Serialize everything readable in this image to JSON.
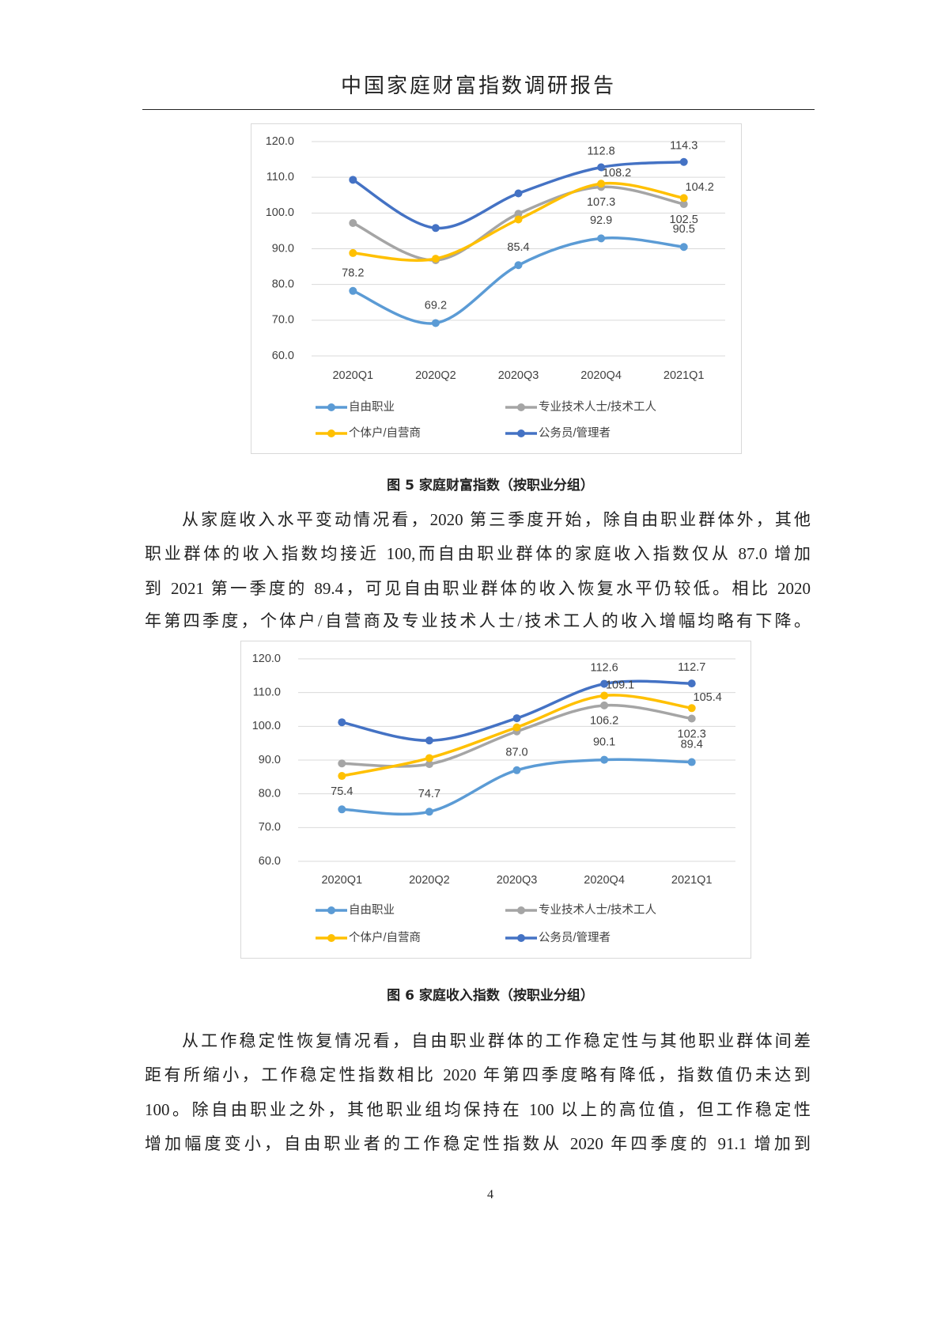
{
  "header": {
    "title": "中国家庭财富指数调研报告"
  },
  "chart_data": [
    {
      "type": "line",
      "categories": [
        "2020Q1",
        "2020Q2",
        "2020Q3",
        "2020Q4",
        "2021Q1"
      ],
      "ylim": [
        60,
        120
      ],
      "yticks": [
        {
          "value": 60,
          "label": "60.0"
        },
        {
          "value": 70,
          "label": "70.0"
        },
        {
          "value": 80,
          "label": "80.0"
        },
        {
          "value": 90,
          "label": "90.0"
        },
        {
          "value": 100,
          "label": "100.0"
        },
        {
          "value": 110,
          "label": "110.0"
        },
        {
          "value": 120,
          "label": "120.0"
        }
      ],
      "grid": true,
      "series": [
        {
          "name": "自由职业",
          "color": "#5b9bd5",
          "values": [
            78.2,
            69.2,
            85.4,
            92.9,
            90.5
          ],
          "value_labels": [
            "78.2",
            "69.2",
            "85.4",
            "92.9",
            "90.5"
          ]
        },
        {
          "name": "专业技术人士/技术工人",
          "color": "#a5a5a5",
          "values": [
            97.2,
            86.8,
            99.8,
            107.3,
            102.5
          ],
          "value_labels": [
            null,
            null,
            null,
            "107.3",
            "102.5"
          ]
        },
        {
          "name": "个体户/自营商",
          "color": "#ffc000",
          "values": [
            88.8,
            87.2,
            98.2,
            108.2,
            104.2
          ],
          "value_labels": [
            null,
            null,
            null,
            "108.2",
            "104.2"
          ]
        },
        {
          "name": "公务员/管理者",
          "color": "#4472c4",
          "values": [
            109.3,
            95.8,
            105.5,
            112.8,
            114.3
          ],
          "value_labels": [
            null,
            null,
            null,
            "112.8",
            "114.3"
          ]
        }
      ]
    },
    {
      "type": "line",
      "categories": [
        "2020Q1",
        "2020Q2",
        "2020Q3",
        "2020Q4",
        "2021Q1"
      ],
      "ylim": [
        60,
        120
      ],
      "yticks": [
        {
          "value": 60,
          "label": "60.0"
        },
        {
          "value": 70,
          "label": "70.0"
        },
        {
          "value": 80,
          "label": "80.0"
        },
        {
          "value": 90,
          "label": "90.0"
        },
        {
          "value": 100,
          "label": "100.0"
        },
        {
          "value": 110,
          "label": "110.0"
        },
        {
          "value": 120,
          "label": "120.0"
        }
      ],
      "grid": true,
      "series": [
        {
          "name": "自由职业",
          "color": "#5b9bd5",
          "values": [
            75.4,
            74.7,
            87.0,
            90.1,
            89.4
          ],
          "value_labels": [
            "75.4",
            "74.7",
            "87.0",
            "90.1",
            "89.4"
          ]
        },
        {
          "name": "专业技术人士/技术工人",
          "color": "#a5a5a5",
          "values": [
            89.0,
            88.8,
            98.5,
            106.2,
            102.3
          ],
          "value_labels": [
            null,
            null,
            null,
            "106.2",
            "102.3"
          ]
        },
        {
          "name": "个体户/自营商",
          "color": "#ffc000",
          "values": [
            85.3,
            90.6,
            99.7,
            109.1,
            105.4
          ],
          "value_labels": [
            null,
            null,
            null,
            "109.1",
            "105.4"
          ]
        },
        {
          "name": "公务员/管理者",
          "color": "#4472c4",
          "values": [
            101.2,
            95.8,
            102.4,
            112.6,
            112.7
          ],
          "value_labels": [
            null,
            null,
            null,
            "112.6",
            "112.7"
          ]
        }
      ]
    }
  ],
  "captions": [
    "图 5 家庭财富指数（按职业分组）",
    "图 6 家庭收入指数（按职业分组）"
  ],
  "paragraphs": [
    {
      "lines": [
        "从家庭收入水平变动情况看，2020 第三季度开始，除自由职业群体外，其他",
        "职业群体的收入指数均接近 100,而自由职业群体的家庭收入指数仅从 87.0 增加",
        "到 2021 第一季度的 89.4，可见自由职业群体的收入恢复水平仍较低。相比 2020",
        "年第四季度，个体户/自营商及专业技术人士/技术工人的收入增幅均略有下降。"
      ]
    },
    {
      "lines": [
        "从工作稳定性恢复情况看，自由职业群体的工作稳定性与其他职业群体间差",
        "距有所缩小，工作稳定性指数相比 2020 年第四季度略有降低，指数值仍未达到",
        "100。除自由职业之外，其他职业组均保持在 100 以上的高位值，但工作稳定性",
        "增加幅度变小，自由职业者的工作稳定性指数从 2020 年四季度的 91.1 增加到"
      ]
    }
  ],
  "page_number": "4"
}
